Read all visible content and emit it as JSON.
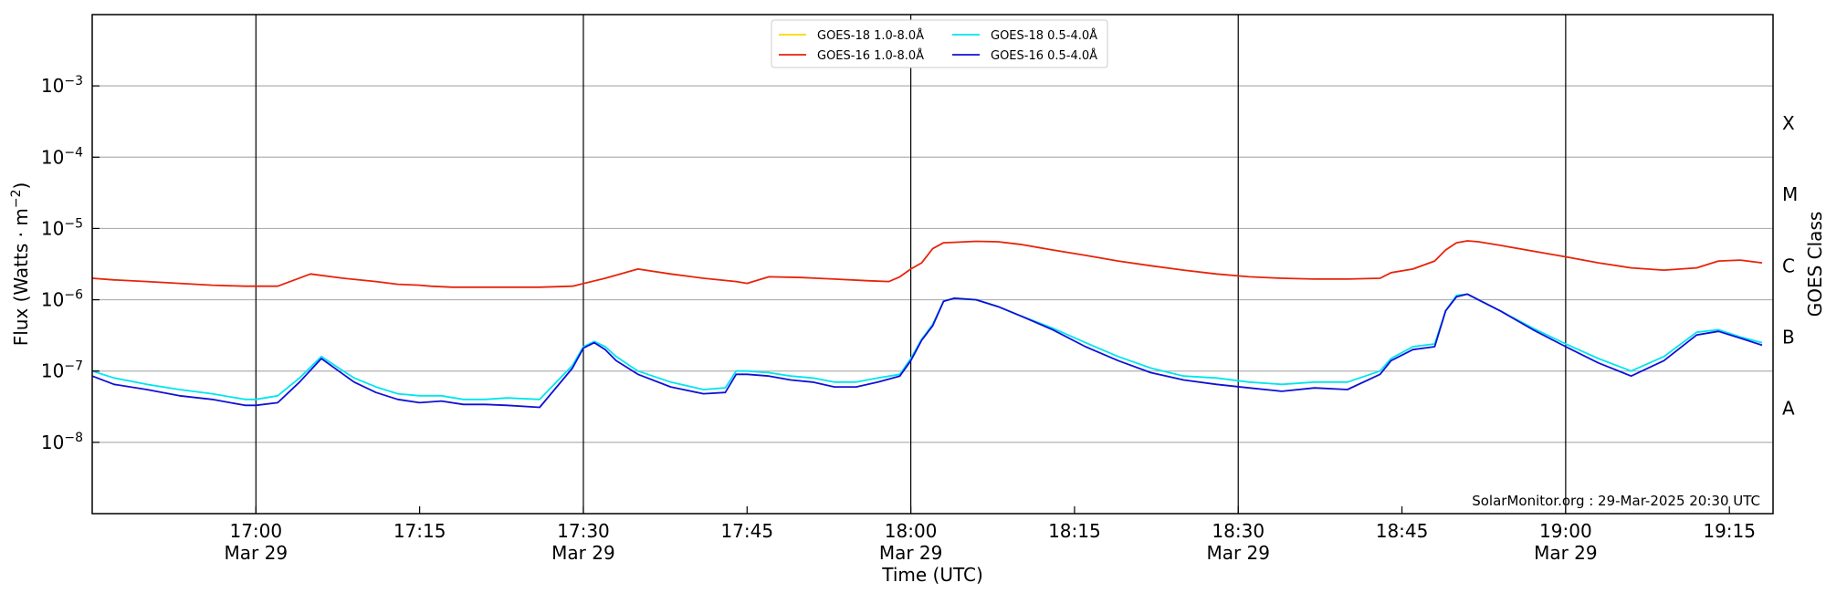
{
  "chart_data": {
    "type": "line",
    "title": "",
    "xlabel": "Time (UTC)",
    "ylabel": "Flux (Watts · m",
    "ylabel_sup": "−2",
    "ylabel_close": ")",
    "right_axis_label": "GOES Class",
    "y_scale": "log",
    "ylim": [
      1e-09,
      0.01
    ],
    "x_range_minutes": [
      1005,
      1159
    ],
    "grid": "horizontal",
    "legend_position": "top-center",
    "y_ticks": [
      {
        "exp": "−3",
        "value": 0.001
      },
      {
        "exp": "−4",
        "value": 0.0001
      },
      {
        "exp": "−5",
        "value": 1e-05
      },
      {
        "exp": "−6",
        "value": 1e-06
      },
      {
        "exp": "−7",
        "value": 1e-07
      },
      {
        "exp": "−8",
        "value": 1e-08
      }
    ],
    "y_tick_base": "10",
    "x_ticks": [
      {
        "time": "17:00",
        "date": "Mar 29",
        "minutes": 1020,
        "vline": true
      },
      {
        "time": "17:15",
        "date": "",
        "minutes": 1035,
        "vline": false
      },
      {
        "time": "17:30",
        "date": "Mar 29",
        "minutes": 1050,
        "vline": true
      },
      {
        "time": "17:45",
        "date": "",
        "minutes": 1065,
        "vline": false
      },
      {
        "time": "18:00",
        "date": "Mar 29",
        "minutes": 1080,
        "vline": true
      },
      {
        "time": "18:15",
        "date": "",
        "minutes": 1095,
        "vline": false
      },
      {
        "time": "18:30",
        "date": "Mar 29",
        "minutes": 1110,
        "vline": true
      },
      {
        "time": "18:45",
        "date": "",
        "minutes": 1125,
        "vline": false
      },
      {
        "time": "19:00",
        "date": "Mar 29",
        "minutes": 1140,
        "vline": true
      },
      {
        "time": "19:15",
        "date": "",
        "minutes": 1155,
        "vline": false
      }
    ],
    "goes_classes": [
      {
        "label": "X",
        "value": 0.0003
      },
      {
        "label": "M",
        "value": 3e-05
      },
      {
        "label": "C",
        "value": 3e-06
      },
      {
        "label": "B",
        "value": 3e-07
      },
      {
        "label": "A",
        "value": 3e-08
      }
    ],
    "credit": "SolarMonitor.org : 29-Mar-2025 20:30 UTC",
    "series": [
      {
        "name": "GOES-18 1.0-8.0Å",
        "color": "#ffd700",
        "x": [],
        "values": []
      },
      {
        "name": "GOES-16 1.0-8.0Å",
        "color": "#e8230a",
        "x": [
          1005,
          1007,
          1010,
          1013,
          1016,
          1019,
          1022,
          1025,
          1028,
          1031,
          1033,
          1035,
          1036,
          1038,
          1040,
          1043,
          1046,
          1049,
          1052,
          1055,
          1058,
          1061,
          1064,
          1065,
          1067,
          1070,
          1073,
          1076,
          1078,
          1079,
          1080,
          1081,
          1082,
          1083,
          1084,
          1086,
          1088,
          1090,
          1093,
          1096,
          1099,
          1102,
          1105,
          1108,
          1111,
          1114,
          1117,
          1120,
          1123,
          1124,
          1126,
          1128,
          1129,
          1130,
          1131,
          1132,
          1134,
          1137,
          1140,
          1143,
          1146,
          1149,
          1152,
          1154,
          1156,
          1158
        ],
        "values": [
          2e-06,
          1.9e-06,
          1.8e-06,
          1.7e-06,
          1.6e-06,
          1.55e-06,
          1.55e-06,
          2.3e-06,
          2e-06,
          1.8e-06,
          1.65e-06,
          1.6e-06,
          1.55e-06,
          1.5e-06,
          1.5e-06,
          1.5e-06,
          1.5e-06,
          1.55e-06,
          2e-06,
          2.7e-06,
          2.3e-06,
          2e-06,
          1.8e-06,
          1.7e-06,
          2.1e-06,
          2.05e-06,
          1.95e-06,
          1.85e-06,
          1.8e-06,
          2.1e-06,
          2.7e-06,
          3.3e-06,
          5.2e-06,
          6.3e-06,
          6.4e-06,
          6.6e-06,
          6.5e-06,
          6e-06,
          5e-06,
          4.2e-06,
          3.5e-06,
          3e-06,
          2.6e-06,
          2.3e-06,
          2.1e-06,
          2e-06,
          1.95e-06,
          1.95e-06,
          2e-06,
          2.4e-06,
          2.7e-06,
          3.5e-06,
          5e-06,
          6.3e-06,
          6.7e-06,
          6.5e-06,
          5.8e-06,
          4.8e-06,
          4e-06,
          3.3e-06,
          2.8e-06,
          2.6e-06,
          2.8e-06,
          3.5e-06,
          3.6e-06,
          3.3e-06
        ]
      },
      {
        "name": "GOES-18 0.5-4.0Å",
        "color": "#00e5ee",
        "x": [
          1005,
          1007,
          1010,
          1013,
          1016,
          1019,
          1020,
          1022,
          1024,
          1026,
          1028,
          1029,
          1031,
          1033,
          1035,
          1037,
          1039,
          1041,
          1043,
          1046,
          1049,
          1050,
          1051,
          1052,
          1053,
          1055,
          1058,
          1061,
          1063,
          1064,
          1065,
          1067,
          1069,
          1071,
          1073,
          1075,
          1077,
          1079,
          1080,
          1081,
          1082,
          1083,
          1084,
          1086,
          1088,
          1090,
          1093,
          1096,
          1099,
          1102,
          1105,
          1108,
          1111,
          1114,
          1117,
          1120,
          1123,
          1124,
          1126,
          1128,
          1129,
          1130,
          1131,
          1132,
          1134,
          1137,
          1140,
          1143,
          1146,
          1149,
          1152,
          1154,
          1156,
          1158
        ],
        "values": [
          1e-07,
          8e-08,
          6.5e-08,
          5.5e-08,
          4.8e-08,
          4e-08,
          4e-08,
          4.5e-08,
          8e-08,
          1.6e-07,
          1e-07,
          8e-08,
          6e-08,
          4.8e-08,
          4.5e-08,
          4.5e-08,
          4e-08,
          4e-08,
          4.2e-08,
          4e-08,
          1.2e-07,
          2.2e-07,
          2.6e-07,
          2.2e-07,
          1.6e-07,
          1e-07,
          7e-08,
          5.5e-08,
          5.8e-08,
          1e-07,
          1e-07,
          9.5e-08,
          8.5e-08,
          8e-08,
          7e-08,
          7e-08,
          8e-08,
          9e-08,
          1.5e-07,
          2.8e-07,
          4.5e-07,
          9.5e-07,
          1.05e-06,
          1e-06,
          8e-07,
          6e-07,
          4e-07,
          2.5e-07,
          1.6e-07,
          1.1e-07,
          8.5e-08,
          8e-08,
          7e-08,
          6.5e-08,
          7e-08,
          7e-08,
          1e-07,
          1.5e-07,
          2.2e-07,
          2.4e-07,
          7e-07,
          1.15e-06,
          1.2e-06,
          1e-06,
          7e-07,
          4e-07,
          2.4e-07,
          1.5e-07,
          1e-07,
          1.6e-07,
          3.5e-07,
          3.8e-07,
          3e-07,
          2.5e-07
        ]
      },
      {
        "name": "GOES-16 0.5-4.0Å",
        "color": "#1010d8",
        "x": [
          1005,
          1007,
          1010,
          1013,
          1016,
          1019,
          1020,
          1022,
          1024,
          1026,
          1028,
          1029,
          1031,
          1033,
          1035,
          1037,
          1039,
          1041,
          1043,
          1046,
          1049,
          1050,
          1051,
          1052,
          1053,
          1055,
          1058,
          1061,
          1063,
          1064,
          1065,
          1067,
          1069,
          1071,
          1073,
          1075,
          1077,
          1079,
          1080,
          1081,
          1082,
          1083,
          1084,
          1086,
          1088,
          1090,
          1093,
          1096,
          1099,
          1102,
          1105,
          1108,
          1111,
          1114,
          1117,
          1120,
          1123,
          1124,
          1126,
          1128,
          1129,
          1130,
          1131,
          1132,
          1134,
          1137,
          1140,
          1143,
          1146,
          1149,
          1152,
          1154,
          1156,
          1158
        ],
        "values": [
          8.5e-08,
          6.5e-08,
          5.5e-08,
          4.5e-08,
          4e-08,
          3.3e-08,
          3.3e-08,
          3.6e-08,
          7e-08,
          1.5e-07,
          9e-08,
          7e-08,
          5e-08,
          4e-08,
          3.6e-08,
          3.8e-08,
          3.4e-08,
          3.4e-08,
          3.3e-08,
          3.1e-08,
          1.1e-07,
          2.1e-07,
          2.5e-07,
          2e-07,
          1.4e-07,
          9e-08,
          6e-08,
          4.8e-08,
          5e-08,
          9e-08,
          9e-08,
          8.5e-08,
          7.5e-08,
          7e-08,
          6e-08,
          6e-08,
          7e-08,
          8.5e-08,
          1.4e-07,
          2.7e-07,
          4.3e-07,
          9.5e-07,
          1.05e-06,
          1e-06,
          8e-07,
          6e-07,
          3.8e-07,
          2.2e-07,
          1.4e-07,
          9.5e-08,
          7.5e-08,
          6.5e-08,
          5.8e-08,
          5.2e-08,
          5.8e-08,
          5.5e-08,
          9e-08,
          1.4e-07,
          2e-07,
          2.2e-07,
          7e-07,
          1.1e-06,
          1.2e-06,
          1e-06,
          7e-07,
          3.8e-07,
          2.2e-07,
          1.3e-07,
          8.5e-08,
          1.4e-07,
          3.2e-07,
          3.6e-07,
          2.9e-07,
          2.3e-07
        ]
      }
    ]
  }
}
